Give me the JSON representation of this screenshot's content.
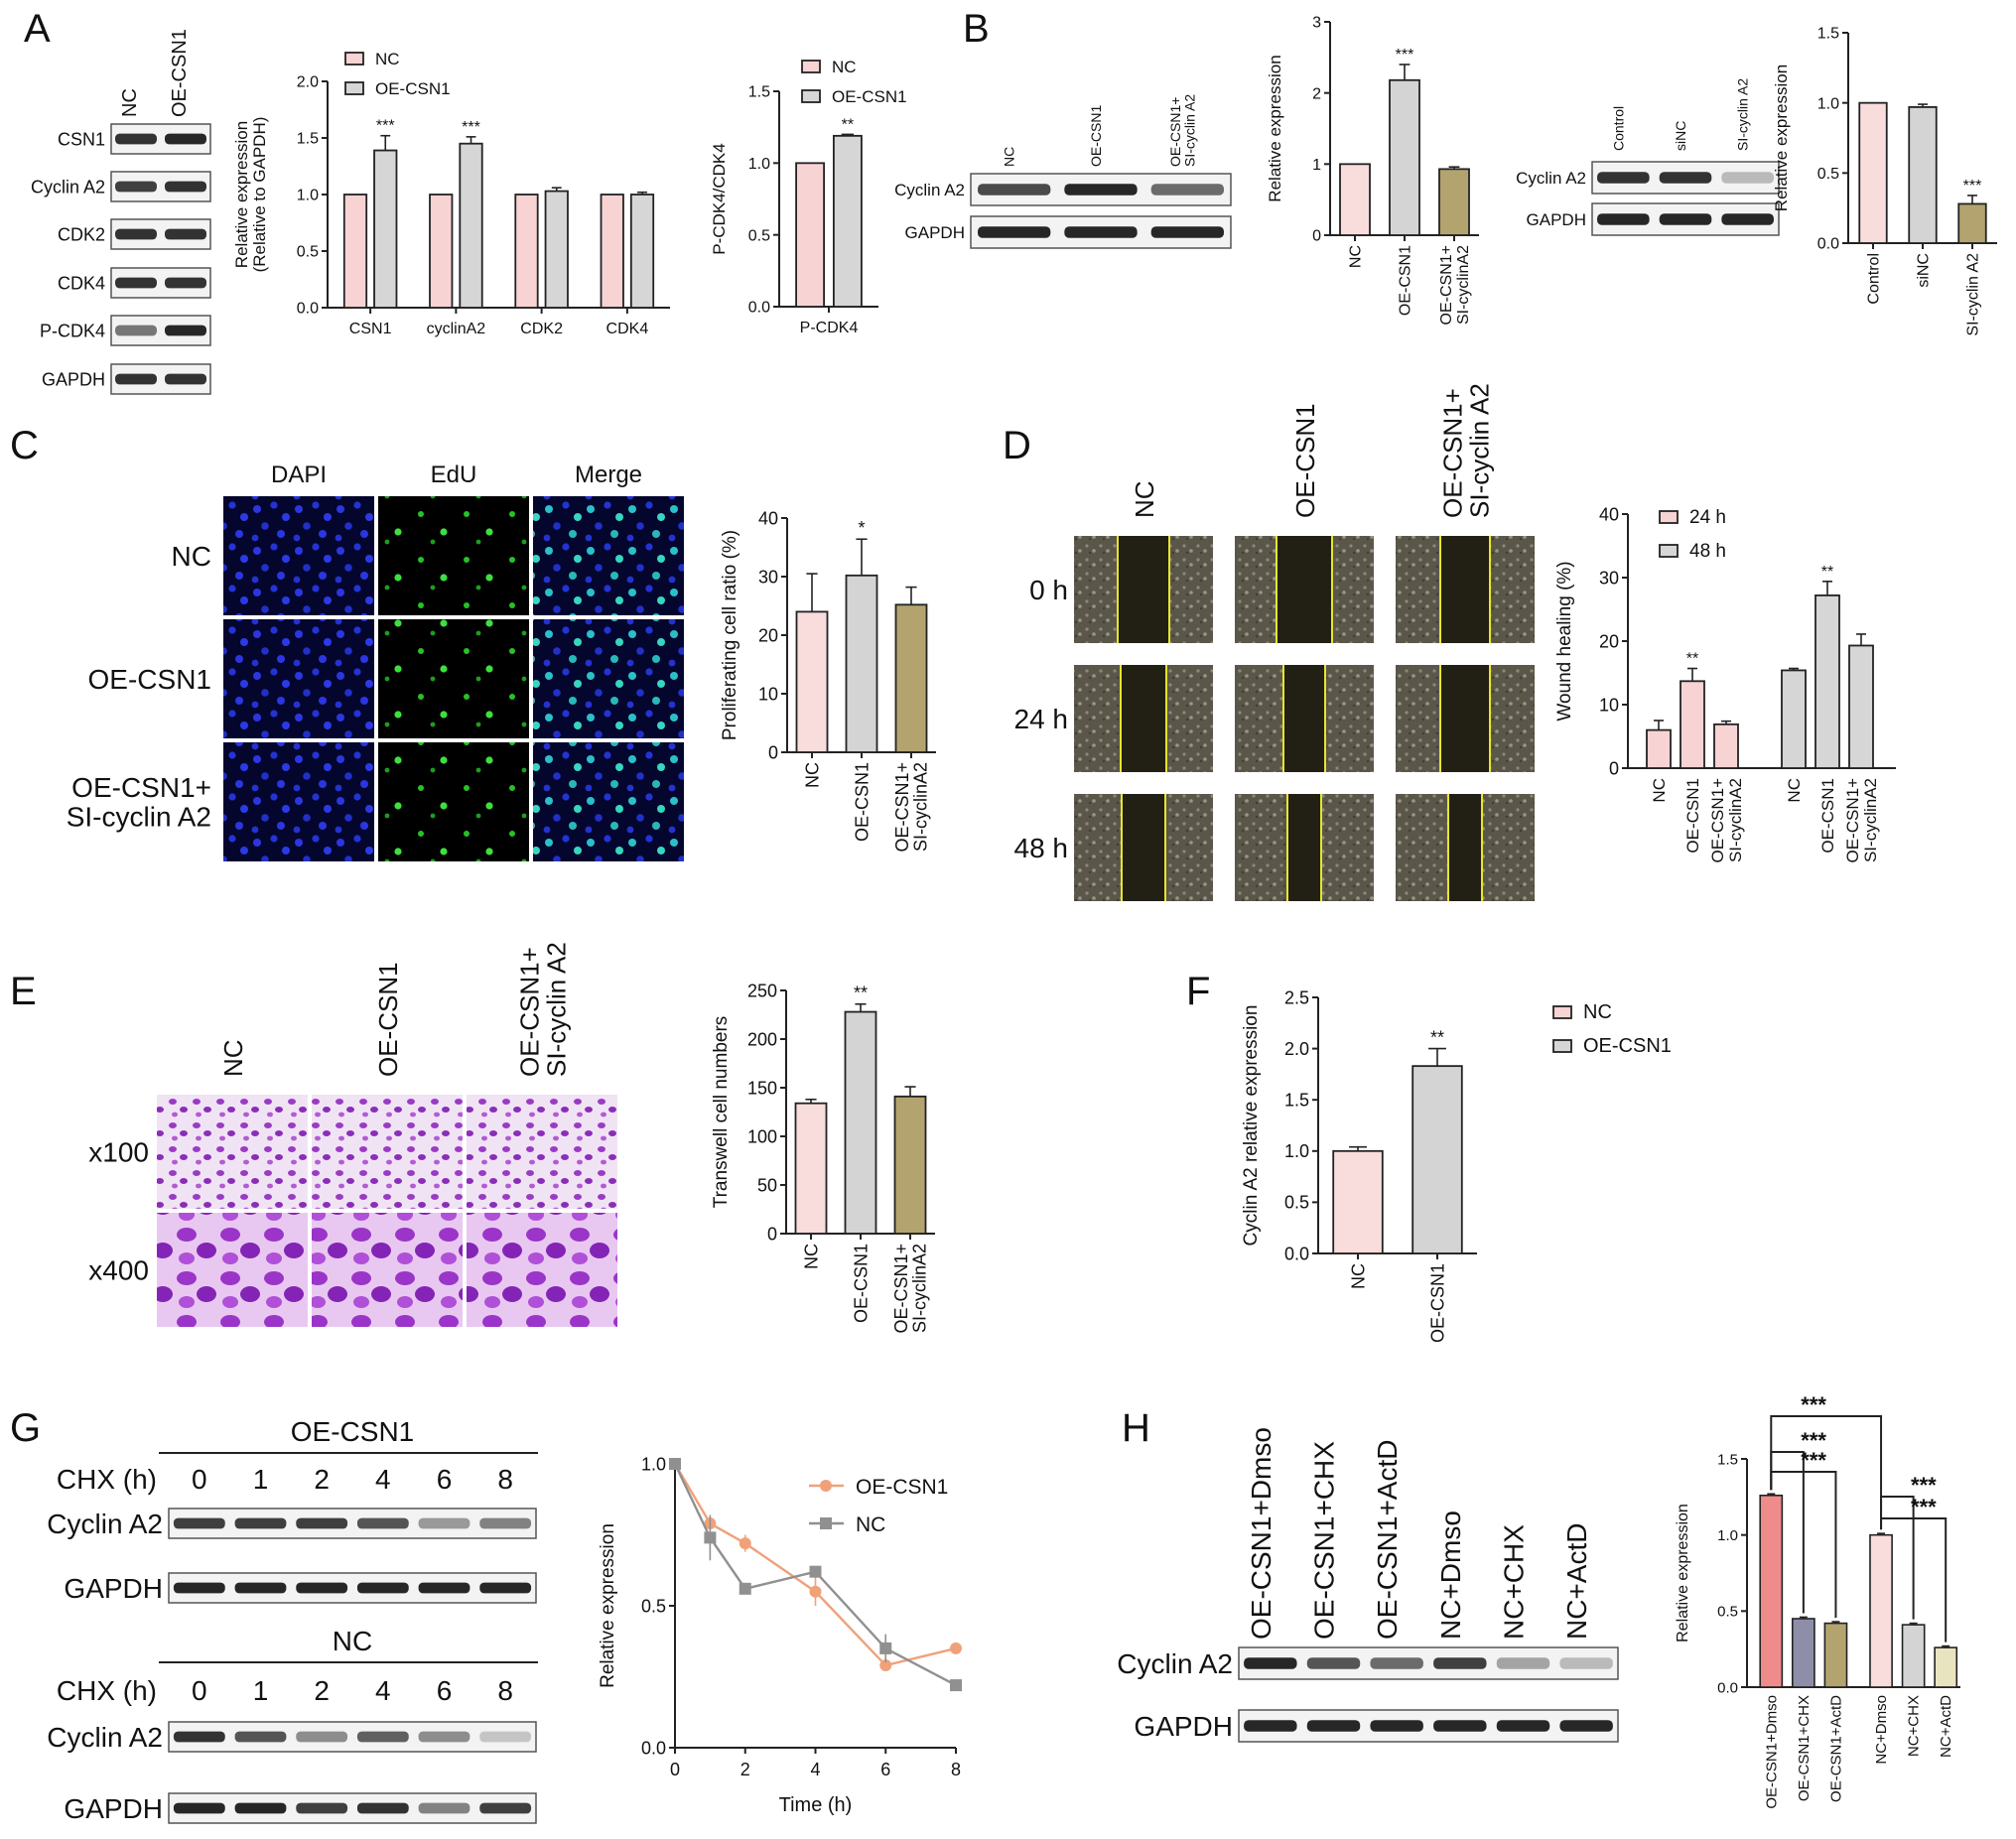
{
  "panel_labels": [
    "A",
    "B",
    "C",
    "D",
    "E",
    "F",
    "G",
    "H"
  ],
  "blots": [
    {
      "id": "A-blot",
      "columns": [
        "NC",
        "OE-CSN1"
      ],
      "rows": [
        "CSN1",
        "Cyclin A2",
        "CDK2",
        "CDK4",
        "P-CDK4",
        "GAPDH"
      ]
    },
    {
      "id": "B-blot1",
      "columns": [
        "NC",
        "OE-CSN1",
        "OE-CSN1+\nSI-cyclin A2"
      ],
      "rows": [
        "Cyclin A2",
        "GAPDH"
      ]
    },
    {
      "id": "B-blot2",
      "columns": [
        "Control",
        "siNC",
        "SI-cyclin A2"
      ],
      "rows": [
        "Cyclin A2",
        "GAPDH"
      ]
    },
    {
      "id": "G-blot1",
      "title": "OE-CSN1",
      "header": "CHX (h)",
      "columns": [
        "0",
        "1",
        "2",
        "4",
        "6",
        "8"
      ],
      "rows": [
        "Cyclin A2",
        "GAPDH"
      ]
    },
    {
      "id": "G-blot2",
      "title": "NC",
      "header": "CHX (h)",
      "columns": [
        "0",
        "1",
        "2",
        "4",
        "6",
        "8"
      ],
      "rows": [
        "Cyclin A2",
        "GAPDH"
      ]
    },
    {
      "id": "H-blot",
      "columns": [
        "OE-CSN1+Dmso",
        "OE-CSN1+CHX",
        "OE-CSN1+ActD",
        "NC+Dmso",
        "NC+CHX",
        "NC+ActD"
      ],
      "rows": [
        "Cyclin A2",
        "GAPDH"
      ]
    }
  ],
  "micrographs": [
    {
      "id": "C-edu",
      "columns": [
        "DAPI",
        "EdU",
        "Merge"
      ],
      "rows": [
        "NC",
        "OE-CSN1",
        "OE-CSN1+\nSI-cyclin A2"
      ]
    },
    {
      "id": "D-wound",
      "columns": [
        "NC",
        "OE-CSN1",
        "OE-CSN1+\nSI-cyclin A2"
      ],
      "rows": [
        "0 h",
        "24 h",
        "48 h"
      ]
    },
    {
      "id": "E-transwell",
      "columns": [
        "NC",
        "OE-CSN1",
        "OE-CSN1+\nSI-cyclin A2"
      ],
      "rows": [
        "x100",
        "x400"
      ]
    }
  ],
  "chart_data": [
    {
      "id": "A1",
      "type": "bar",
      "ylabel": "Relative expression\n(Relative to GAPDH)",
      "ylim": [
        0,
        2.0
      ],
      "yticks": [
        "0.0",
        "0.5",
        "1.0",
        "1.5",
        "2.0"
      ],
      "categories": [
        "CSN1",
        "cyclinA2",
        "CDK2",
        "CDK4"
      ],
      "series": [
        {
          "name": "NC",
          "color": "#f7d3d3",
          "values": [
            1.0,
            1.0,
            1.0,
            1.0
          ],
          "errors": [
            0,
            0,
            0,
            0
          ]
        },
        {
          "name": "OE-CSN1",
          "color": "#d6d6d6",
          "values": [
            1.39,
            1.45,
            1.03,
            1.0
          ],
          "errors": [
            0.13,
            0.06,
            0.03,
            0.02
          ]
        }
      ],
      "annotations": [
        {
          "cat": 0,
          "series": 1,
          "text": "***"
        },
        {
          "cat": 1,
          "series": 1,
          "text": "***"
        }
      ],
      "legend": "top-left"
    },
    {
      "id": "A2",
      "type": "bar",
      "ylabel": "P-CDK4/CDK4",
      "ylim": [
        0,
        1.5
      ],
      "yticks": [
        "0.0",
        "0.5",
        "1.0",
        "1.5"
      ],
      "categories": [
        "P-CDK4"
      ],
      "series": [
        {
          "name": "NC",
          "color": "#f7d3d3",
          "values": [
            1.0
          ],
          "errors": [
            0
          ]
        },
        {
          "name": "OE-CSN1",
          "color": "#d6d6d6",
          "values": [
            1.19
          ],
          "errors": [
            0.01
          ]
        }
      ],
      "annotations": [
        {
          "cat": 0,
          "series": 1,
          "text": "**"
        }
      ],
      "legend": "top-left"
    },
    {
      "id": "B1",
      "type": "bar",
      "ylabel": "Relative expression",
      "ylim": [
        0,
        3
      ],
      "yticks": [
        "0",
        "1",
        "2",
        "3"
      ],
      "categories": [
        "NC",
        "OE-CSN1",
        "OE-CSN1+\nSI-cyclinA2"
      ],
      "values": [
        1.0,
        2.18,
        0.93
      ],
      "errors": [
        0,
        0.22,
        0.03
      ],
      "colors": [
        "#f9dcdc",
        "#d4d4d4",
        "#b3a46f"
      ],
      "annotations": [
        "",
        "***",
        ""
      ]
    },
    {
      "id": "B2",
      "type": "bar",
      "ylabel": "Relative expression",
      "ylim": [
        0,
        1.5
      ],
      "yticks": [
        "0.0",
        "0.5",
        "1.0",
        "1.5"
      ],
      "categories": [
        "Control",
        "siNC",
        "SI-cyclin A2"
      ],
      "values": [
        1.0,
        0.97,
        0.28
      ],
      "errors": [
        0,
        0.02,
        0.06
      ],
      "colors": [
        "#f9dcdc",
        "#d4d4d4",
        "#b3a46f"
      ],
      "annotations": [
        "",
        "",
        "***"
      ]
    },
    {
      "id": "C",
      "type": "bar",
      "ylabel": "Proliferating cell ratio (%)",
      "ylim": [
        0,
        40
      ],
      "yticks": [
        "0",
        "10",
        "20",
        "30",
        "40"
      ],
      "categories": [
        "NC",
        "OE-CSN1",
        "OE-CSN1+\nSI-cyclinA2"
      ],
      "values": [
        24.0,
        30.2,
        25.2
      ],
      "errors": [
        6.5,
        6.2,
        3.0
      ],
      "colors": [
        "#f9dcdc",
        "#d4d4d4",
        "#b3a46f"
      ],
      "annotations": [
        "",
        "*",
        ""
      ]
    },
    {
      "id": "D",
      "type": "bar",
      "ylabel": "Wound healing (%)",
      "ylim": [
        0,
        40
      ],
      "yticks": [
        "0",
        "10",
        "20",
        "30",
        "40"
      ],
      "categories": [
        "NC",
        "OE-CSN1",
        "OE-CSN1+\nSI-cyclinA2",
        "NC",
        "OE-CSN1",
        "OE-CSN1+\nSI-cyclinA2"
      ],
      "groups": [
        {
          "name": "24 h",
          "color": "#f7d3d3",
          "values": [
            6.0,
            13.7,
            6.9
          ],
          "errors": [
            1.5,
            2.0,
            0.5
          ],
          "annotations": [
            "",
            "**",
            ""
          ]
        },
        {
          "name": "48 h",
          "color": "#d6d6d6",
          "values": [
            15.4,
            27.2,
            19.3
          ],
          "errors": [
            0.3,
            2.2,
            1.8
          ],
          "annotations": [
            "",
            "**",
            ""
          ]
        }
      ],
      "legend": "top-left"
    },
    {
      "id": "E",
      "type": "bar",
      "ylabel": "Transwell cell numbers",
      "ylim": [
        0,
        250
      ],
      "yticks": [
        "0",
        "50",
        "100",
        "150",
        "200",
        "250"
      ],
      "categories": [
        "NC",
        "OE-CSN1",
        "OE-CSN1+\nSI-cyclinA2"
      ],
      "values": [
        134,
        228,
        141
      ],
      "errors": [
        4,
        8,
        10
      ],
      "colors": [
        "#f9dcdc",
        "#d4d4d4",
        "#b3a46f"
      ],
      "annotations": [
        "",
        "**",
        ""
      ]
    },
    {
      "id": "F",
      "type": "bar",
      "ylabel": "Cyclin A2 relative expression",
      "ylim": [
        0,
        2.5
      ],
      "yticks": [
        "0.0",
        "0.5",
        "1.0",
        "1.5",
        "2.0",
        "2.5"
      ],
      "categories": [
        "NC",
        "OE-CSN1"
      ],
      "values": [
        1.0,
        1.83
      ],
      "errors": [
        0.04,
        0.17
      ],
      "colors": [
        "#f9dcdc",
        "#d4d4d4"
      ],
      "annotations": [
        "",
        "**"
      ],
      "legend_entries": [
        {
          "name": "NC",
          "color": "#f7d3d3"
        },
        {
          "name": "OE-CSN1",
          "color": "#d6d6d6"
        }
      ]
    },
    {
      "id": "G",
      "type": "line",
      "xlabel": "Time (h)",
      "ylabel": "Relative expression",
      "xlim": [
        0,
        8
      ],
      "ylim": [
        0,
        1.0
      ],
      "xticks": [
        "0",
        "2",
        "4",
        "6",
        "8"
      ],
      "yticks": [
        "0.0",
        "0.5",
        "1.0"
      ],
      "x": [
        0,
        1,
        2,
        4,
        6,
        8
      ],
      "series": [
        {
          "name": "OE-CSN1",
          "color": "#f0a17a",
          "marker": "circle",
          "values": [
            1.0,
            0.79,
            0.72,
            0.55,
            0.29,
            0.35
          ],
          "errors": [
            0,
            0.02,
            0.03,
            0.05,
            0.01,
            0.01
          ]
        },
        {
          "name": "NC",
          "color": "#909090",
          "marker": "square",
          "values": [
            1.0,
            0.74,
            0.56,
            0.62,
            0.35,
            0.22
          ],
          "errors": [
            0,
            0.08,
            0.01,
            0.01,
            0.05,
            0.01
          ]
        }
      ],
      "legend": "top-right"
    },
    {
      "id": "H",
      "type": "bar",
      "ylabel": "Relative expression",
      "ylim": [
        0,
        1.5
      ],
      "yticks": [
        "0.0",
        "0.5",
        "1.0",
        "1.5"
      ],
      "categories": [
        "OE-CSN1+Dmso",
        "OE-CSN1+CHX",
        "OE-CSN1+ActD",
        "NC+Dmso",
        "NC+CHX",
        "NC+ActD"
      ],
      "values": [
        1.26,
        0.45,
        0.42,
        1.0,
        0.41,
        0.26
      ],
      "errors": [
        0.01,
        0.01,
        0.01,
        0.01,
        0.01,
        0.01
      ],
      "colors": [
        "#f08b8b",
        "#8e8ea8",
        "#b3a46f",
        "#f9dcdc",
        "#d4d4d4",
        "#e9e4c0"
      ],
      "brackets": [
        {
          "from": 0,
          "to": 3,
          "text": "***"
        },
        {
          "from": 0,
          "to": 1,
          "text": "***"
        },
        {
          "from": 0,
          "to": 2,
          "text": "***"
        },
        {
          "from": 3,
          "to": 4,
          "text": "***"
        },
        {
          "from": 3,
          "to": 5,
          "text": "***"
        }
      ]
    }
  ]
}
